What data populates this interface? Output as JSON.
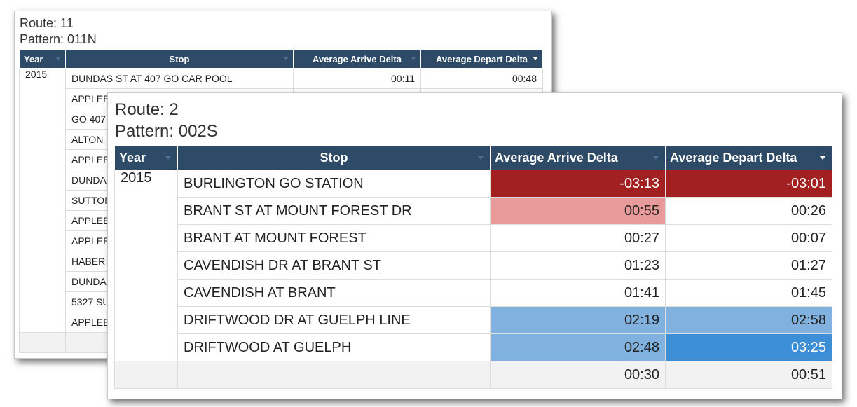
{
  "back_panel": {
    "route_label": "Route: 11",
    "pattern_label": "Pattern: 011N",
    "columns": {
      "year": "Year",
      "stop": "Stop",
      "arrive": "Average Arrive Delta",
      "depart": "Average Depart Delta"
    },
    "year": "2015",
    "rows": [
      {
        "stop": "DUNDAS ST AT 407 GO CAR POOL",
        "arrive": "00:11",
        "depart": "00:48"
      },
      {
        "stop": "APPLEB",
        "arrive": "",
        "depart": ""
      },
      {
        "stop": "GO 407",
        "arrive": "",
        "depart": ""
      },
      {
        "stop": "ALTON",
        "arrive": "",
        "depart": ""
      },
      {
        "stop": "APPLEB",
        "arrive": "",
        "depart": ""
      },
      {
        "stop": "DUNDA",
        "arrive": "",
        "depart": ""
      },
      {
        "stop": "SUTTON",
        "arrive": "",
        "depart": ""
      },
      {
        "stop": "APPLEB",
        "arrive": "",
        "depart": ""
      },
      {
        "stop": "APPLEB",
        "arrive": "",
        "depart": ""
      },
      {
        "stop": "HABER",
        "arrive": "",
        "depart": ""
      },
      {
        "stop": "DUNDA",
        "arrive": "",
        "depart": ""
      },
      {
        "stop": "5327 SU",
        "arrive": "",
        "depart": ""
      },
      {
        "stop": "APPLEB",
        "arrive": "",
        "depart": ""
      }
    ]
  },
  "front_panel": {
    "route_label": "Route: 2",
    "pattern_label": "Pattern: 002S",
    "columns": {
      "year": "Year",
      "stop": "Stop",
      "arrive": "Average Arrive Delta",
      "depart": "Average Depart Delta"
    },
    "year": "2015",
    "rows": [
      {
        "stop": "BURLINGTON GO STATION",
        "arrive": "-03:13",
        "depart": "-03:01",
        "arrive_color": "#a32022",
        "depart_color": "#a32022"
      },
      {
        "stop": "BRANT ST AT MOUNT FOREST DR",
        "arrive": "00:55",
        "depart": "00:26",
        "arrive_color": "#e89a9a",
        "depart_color": ""
      },
      {
        "stop": "BRANT AT MOUNT FOREST",
        "arrive": "00:27",
        "depart": "00:07",
        "arrive_color": "",
        "depart_color": ""
      },
      {
        "stop": "CAVENDISH DR AT BRANT ST",
        "arrive": "01:23",
        "depart": "01:27",
        "arrive_color": "",
        "depart_color": ""
      },
      {
        "stop": "CAVENDISH AT BRANT",
        "arrive": "01:41",
        "depart": "01:45",
        "arrive_color": "",
        "depart_color": ""
      },
      {
        "stop": "DRIFTWOOD DR AT GUELPH LINE",
        "arrive": "02:19",
        "depart": "02:58",
        "arrive_color": "#80b1df",
        "depart_color": "#80b1df"
      },
      {
        "stop": "DRIFTWOOD AT GUELPH",
        "arrive": "02:48",
        "depart": "03:25",
        "arrive_color": "#80b1df",
        "depart_color": "#3c8fd6"
      }
    ],
    "totals": {
      "arrive": "00:30",
      "depart": "00:51"
    }
  }
}
